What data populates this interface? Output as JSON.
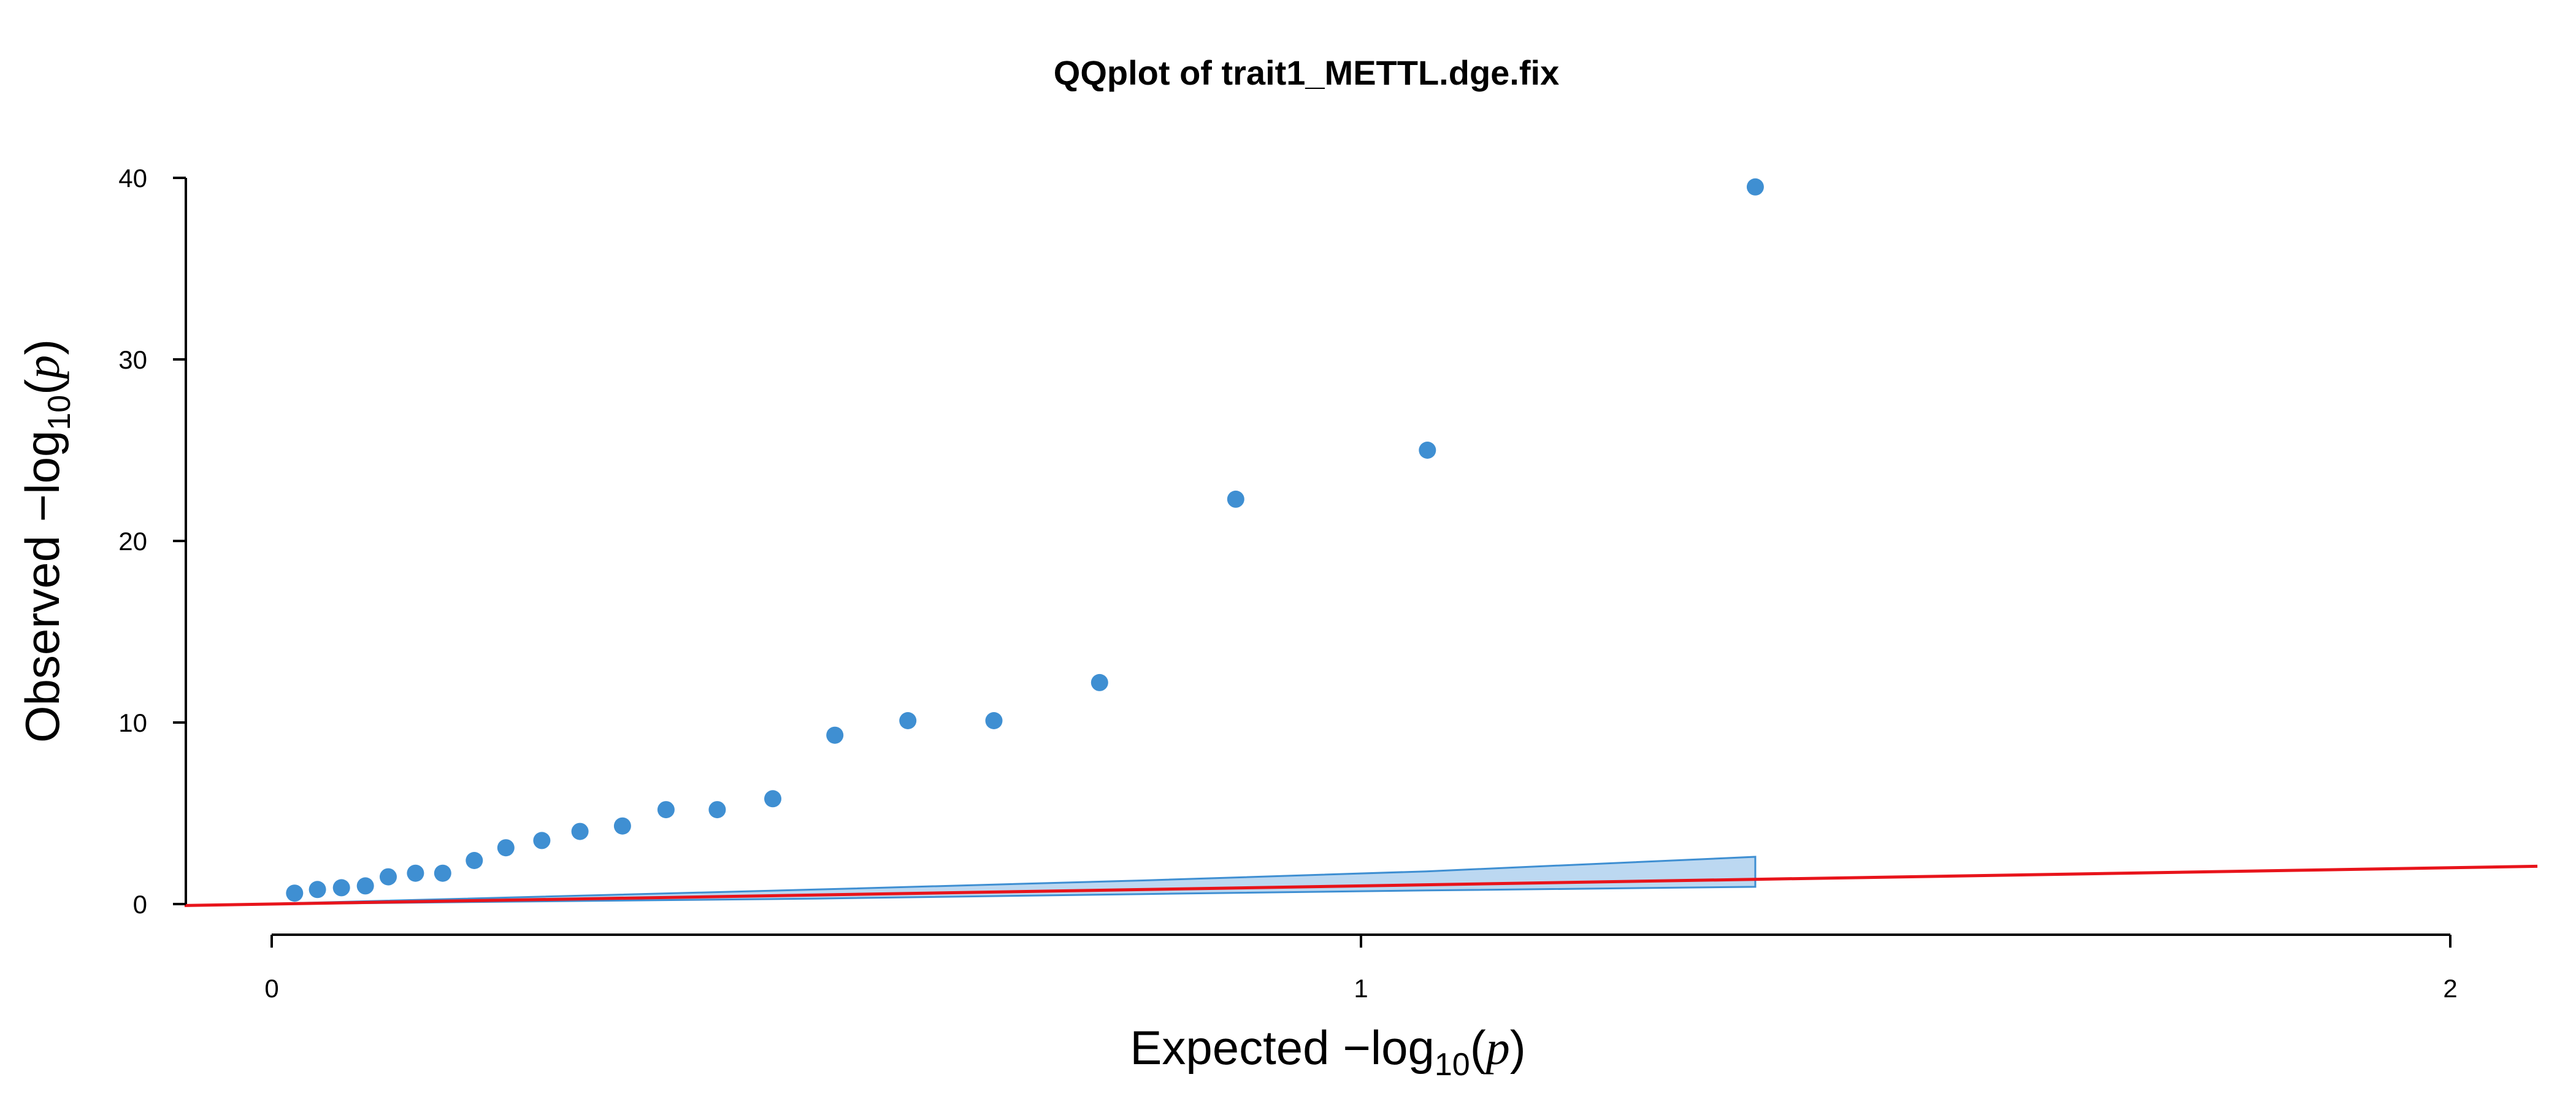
{
  "chart_data": {
    "type": "scatter",
    "title": "QQplot of trait1_METTL.dge.fix",
    "xlabel": {
      "prefix": "Expected  −log",
      "subscript": "10",
      "paren_open": "(",
      "var": "p",
      "paren_close": ")"
    },
    "ylabel": {
      "prefix": "Observed  −log",
      "subscript": "10",
      "paren_open": "(",
      "var": "p",
      "paren_close": ")"
    },
    "xlim": [
      0,
      2
    ],
    "ylim": [
      0,
      40
    ],
    "x_ticks": [
      0,
      1,
      2
    ],
    "x_tick_labels": [
      "0",
      "1",
      "2"
    ],
    "y_ticks": [
      0,
      10,
      20,
      30,
      40
    ],
    "y_tick_labels": [
      "0",
      "10",
      "20",
      "30",
      "40"
    ],
    "grid": false,
    "colors": {
      "points": "#3f8fd2",
      "reference_line": "#e8141b",
      "band_fill": "#bcd8f1",
      "band_stroke": "#3f8fd2"
    },
    "points": [
      {
        "x": 0.021,
        "y": 0.6
      },
      {
        "x": 0.042,
        "y": 0.8
      },
      {
        "x": 0.064,
        "y": 0.9
      },
      {
        "x": 0.086,
        "y": 1.0
      },
      {
        "x": 0.107,
        "y": 1.5
      },
      {
        "x": 0.132,
        "y": 1.7
      },
      {
        "x": 0.157,
        "y": 1.7
      },
      {
        "x": 0.186,
        "y": 2.4
      },
      {
        "x": 0.215,
        "y": 3.1
      },
      {
        "x": 0.248,
        "y": 3.5
      },
      {
        "x": 0.283,
        "y": 4.0
      },
      {
        "x": 0.322,
        "y": 4.3
      },
      {
        "x": 0.362,
        "y": 5.2
      },
      {
        "x": 0.409,
        "y": 5.2
      },
      {
        "x": 0.46,
        "y": 5.8
      },
      {
        "x": 0.517,
        "y": 9.3
      },
      {
        "x": 0.584,
        "y": 10.1
      },
      {
        "x": 0.663,
        "y": 10.1
      },
      {
        "x": 0.76,
        "y": 12.2
      },
      {
        "x": 0.885,
        "y": 22.3
      },
      {
        "x": 1.061,
        "y": 25.0
      },
      {
        "x": 1.362,
        "y": 39.5
      }
    ],
    "reference_line": {
      "x": [
        -0.08,
        2.08
      ],
      "y": [
        -0.08,
        2.08
      ]
    },
    "confidence_band": {
      "x": [
        0.0,
        0.5,
        0.8,
        1.06,
        1.362
      ],
      "upper": [
        0.02,
        0.8,
        1.3,
        1.8,
        2.6
      ],
      "lower": [
        0.0,
        0.3,
        0.55,
        0.75,
        0.95
      ]
    }
  }
}
